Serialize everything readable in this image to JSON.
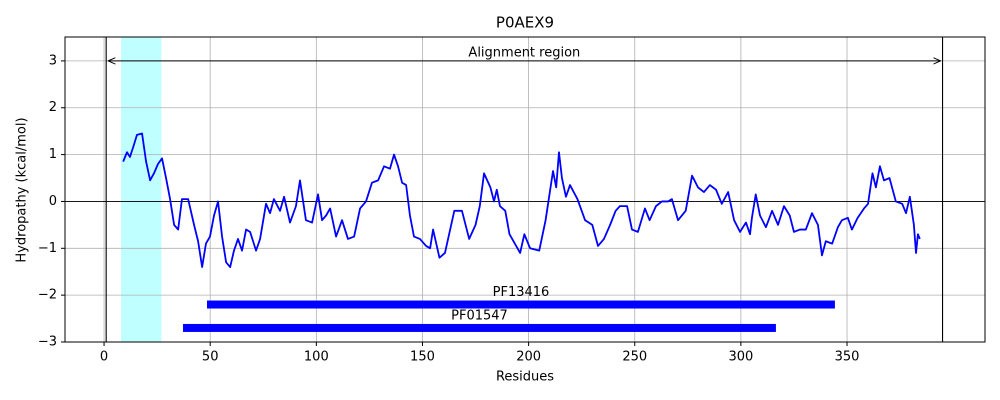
{
  "chart_data": {
    "type": "line",
    "title": "P0AEX9",
    "xlabel": "Residues",
    "ylabel": "Hydropathy (kcal/mol)",
    "color": "#0000ff",
    "x": [
      9,
      10.8,
      12.2,
      14,
      15.5,
      17.9,
      19.8,
      21.7,
      23.5,
      25.4,
      27.3,
      29.2,
      31.1,
      33,
      34.9,
      36.7,
      39.6,
      42.4,
      44.3,
      46.2,
      48,
      49.9,
      51.8,
      53.7,
      55.6,
      57.5,
      59.4,
      61.2,
      63.1,
      65,
      66.9,
      68.8,
      71.6,
      73.5,
      76.3,
      78.2,
      80,
      82.9,
      84.8,
      87.6,
      90.4,
      92.3,
      95.1,
      98,
      100.8,
      102.7,
      104.6,
      106.5,
      109.3,
      112.1,
      114.9,
      117.8,
      120.6,
      123.4,
      126.2,
      129.1,
      131.9,
      134.7,
      136.6,
      138.5,
      140.4,
      142.3,
      144.1,
      146,
      148.8,
      151.7,
      153.6,
      155,
      158,
      160.6,
      165,
      168.6,
      172,
      175,
      177,
      179,
      182,
      183.7,
      185,
      186.5,
      189,
      191,
      196,
      198,
      200.7,
      205,
      208,
      211.5,
      213,
      214.3,
      215.7,
      217.6,
      219.5,
      223,
      226.6,
      230,
      232.7,
      235.5,
      238.4,
      241,
      243,
      246.4,
      248.7,
      251.5,
      254.8,
      257,
      260,
      262.8,
      265.7,
      267.5,
      270.4,
      274,
      277,
      279.8,
      282.6,
      285.4,
      288.3,
      291,
      294,
      296.8,
      299.6,
      302.4,
      304.3,
      305.2,
      307,
      309,
      311.8,
      314.7,
      317.5,
      320.3,
      323,
      325,
      327.8,
      330.6,
      333.5,
      336.3,
      338.2,
      340,
      343,
      345.7,
      347.6,
      350.4,
      352.3,
      355,
      358,
      359.9,
      362,
      363.6,
      365.5,
      367.4,
      370,
      373,
      376,
      377.8,
      379.6,
      381.5,
      382.5,
      383.4,
      384.3
    ],
    "values": [
      0.85,
      1.05,
      0.95,
      1.2,
      1.42,
      1.45,
      0.85,
      0.45,
      0.6,
      0.8,
      0.92,
      0.5,
      0.05,
      -0.5,
      -0.6,
      0.05,
      0.05,
      -0.5,
      -0.85,
      -1.4,
      -0.9,
      -0.75,
      -0.3,
      0.0,
      -0.75,
      -1.3,
      -1.4,
      -1.05,
      -0.8,
      -1.05,
      -0.6,
      -0.65,
      -1.05,
      -0.8,
      -0.05,
      -0.25,
      0.05,
      -0.2,
      0.1,
      -0.45,
      -0.1,
      0.45,
      -0.4,
      -0.45,
      0.15,
      -0.4,
      -0.3,
      -0.15,
      -0.75,
      -0.4,
      -0.8,
      -0.75,
      -0.15,
      0.0,
      0.4,
      0.45,
      0.75,
      0.7,
      1.0,
      0.75,
      0.4,
      0.35,
      -0.3,
      -0.75,
      -0.8,
      -0.95,
      -1.0,
      -0.6,
      -1.2,
      -1.1,
      -0.2,
      -0.2,
      -0.8,
      -0.5,
      -0.1,
      0.6,
      0.3,
      0.0,
      0.25,
      -0.1,
      -0.2,
      -0.7,
      -1.1,
      -0.7,
      -1.0,
      -1.05,
      -0.4,
      0.65,
      0.3,
      1.05,
      0.5,
      0.1,
      0.35,
      0.05,
      -0.4,
      -0.5,
      -0.95,
      -0.8,
      -0.5,
      -0.2,
      -0.1,
      -0.1,
      -0.6,
      -0.65,
      -0.15,
      -0.4,
      -0.1,
      0.0,
      0.0,
      0.05,
      -0.4,
      -0.2,
      0.55,
      0.3,
      0.2,
      0.35,
      0.25,
      -0.05,
      0.2,
      -0.4,
      -0.65,
      -0.45,
      -0.7,
      -0.35,
      0.15,
      -0.3,
      -0.55,
      -0.2,
      -0.5,
      -0.1,
      -0.3,
      -0.65,
      -0.6,
      -0.6,
      -0.25,
      -0.5,
      -1.15,
      -0.85,
      -0.9,
      -0.55,
      -0.4,
      -0.35,
      -0.6,
      -0.35,
      -0.15,
      -0.05,
      0.6,
      0.3,
      0.75,
      0.45,
      0.5,
      0.0,
      -0.05,
      -0.25,
      0.1,
      -0.5,
      -1.1,
      -0.7,
      -0.8
    ],
    "xlim": [
      -18.4,
      415
    ],
    "ylim": [
      -3,
      3.51
    ],
    "xticks": [
      0,
      50,
      100,
      150,
      200,
      250,
      300,
      350
    ],
    "yticks": [
      {
        "value": -3,
        "label": "−3"
      },
      {
        "value": -2,
        "label": "−2"
      },
      {
        "value": -1,
        "label": "−1"
      },
      0,
      1,
      2,
      3
    ],
    "grid": true,
    "span": [
      8,
      27
    ],
    "span_color": "#c0ffff",
    "vlines": [
      1,
      395
    ],
    "hline": 0,
    "annotation": {
      "text": "Alignment region",
      "start": 1,
      "end": 395,
      "y": 3
    },
    "domains": [
      {
        "name": "PF13416",
        "start": 48.5,
        "end": 344.3,
        "y": -2.2,
        "color": "#0000ff"
      },
      {
        "name": "PF01547",
        "start": 37.2,
        "end": 316.5,
        "y": -2.7,
        "color": "#0000ff"
      }
    ]
  }
}
